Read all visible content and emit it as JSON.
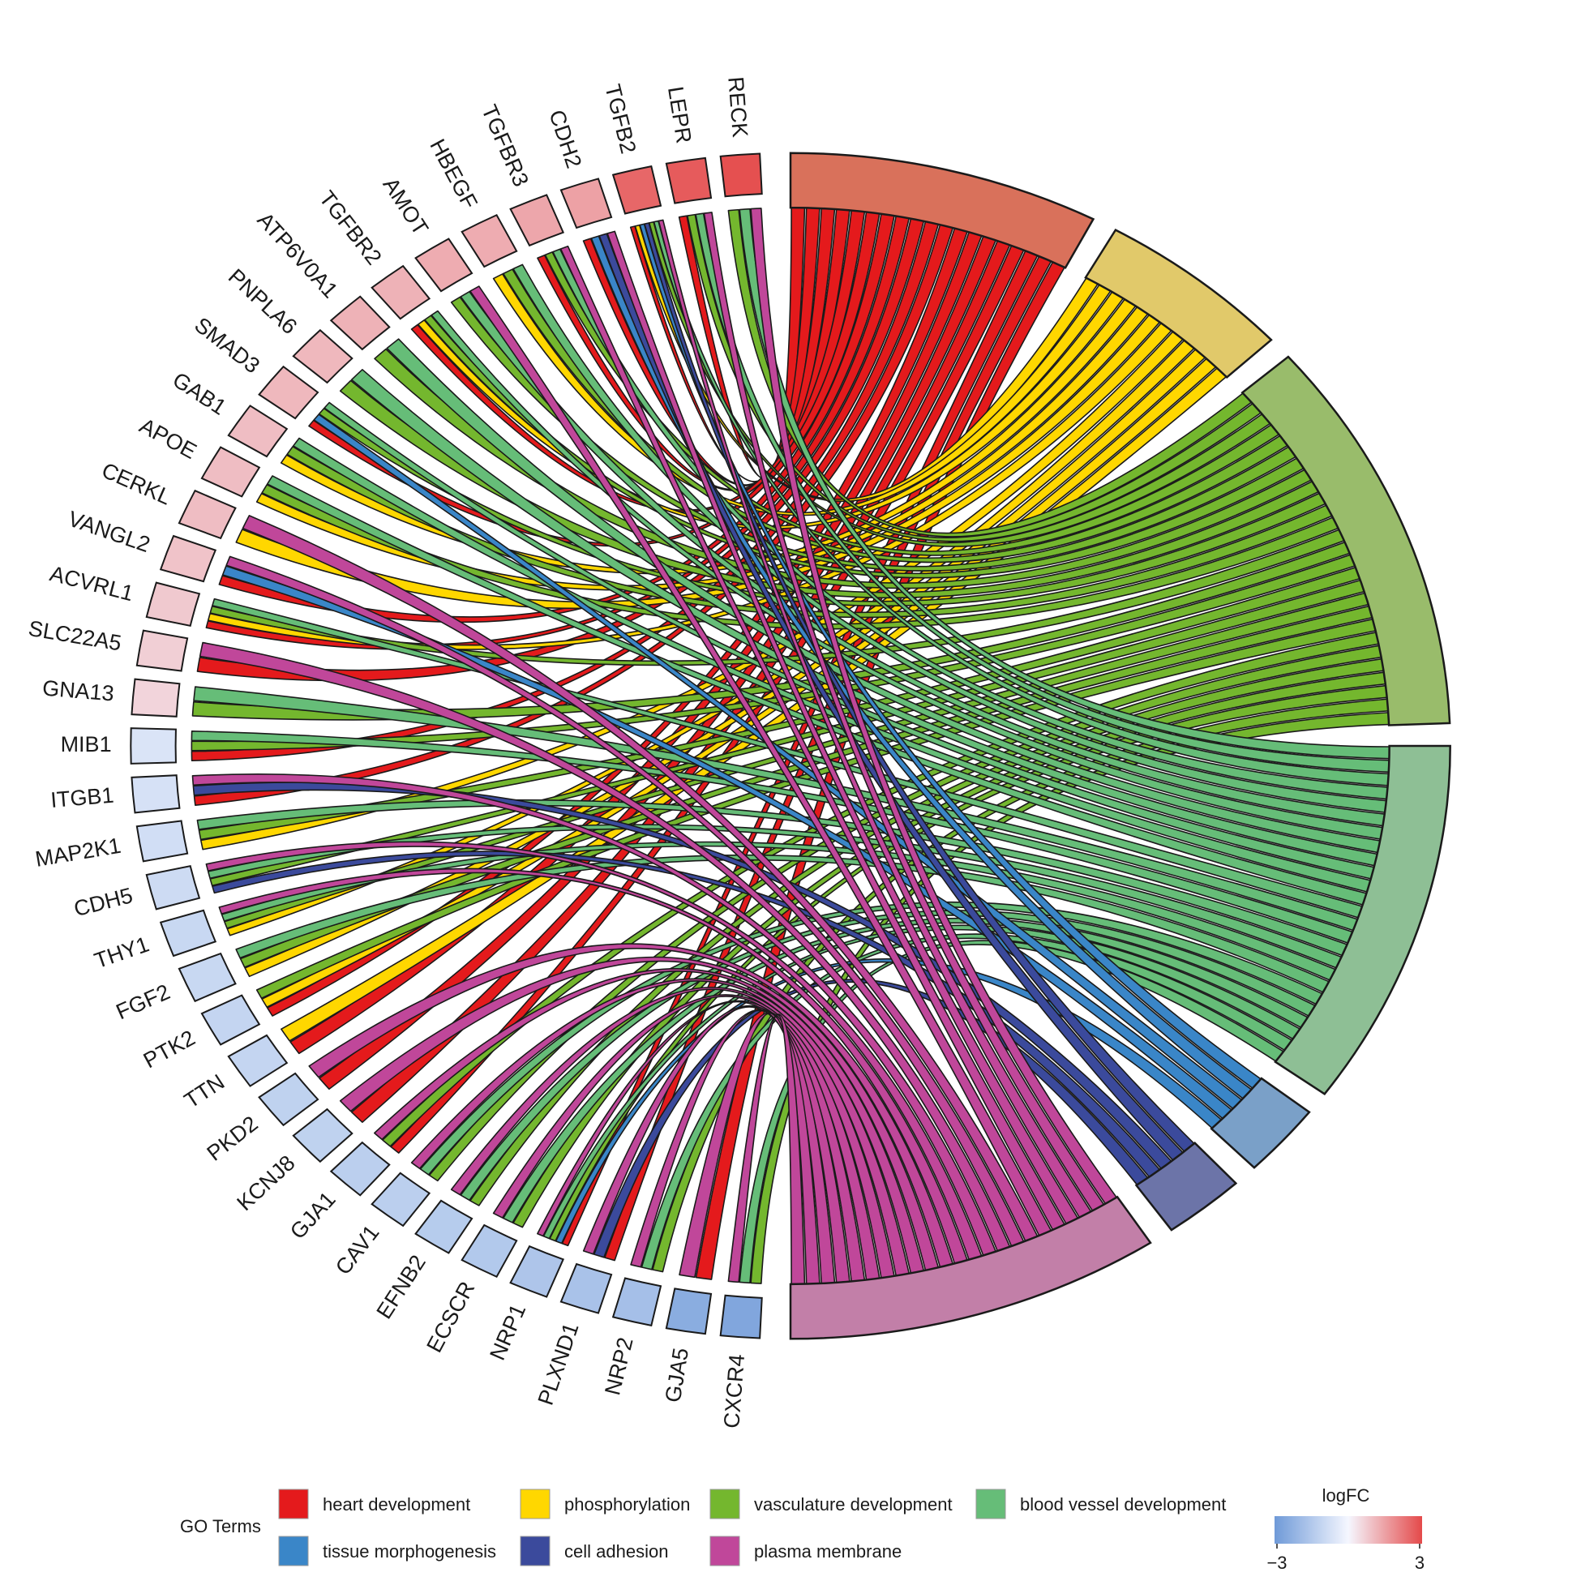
{
  "chart_data": {
    "type": "chord",
    "legend_title": "GO Terms",
    "terms": [
      {
        "name": "heart development",
        "color": "#E41A1C",
        "arc_color": "#D9715B"
      },
      {
        "name": "phosphorylation",
        "color": "#FFD700",
        "arc_color": "#E1C96A"
      },
      {
        "name": "vasculature development",
        "color": "#74B72E",
        "arc_color": "#99BC6B"
      },
      {
        "name": "blood vessel development",
        "color": "#66BD78",
        "arc_color": "#8EBF95"
      },
      {
        "name": "tissue morphogenesis",
        "color": "#3A86C8",
        "arc_color": "#7AA0C8"
      },
      {
        "name": "cell adhesion",
        "color": "#3B4A9C",
        "arc_color": "#6C74A8"
      },
      {
        "name": "plasma membrane",
        "color": "#C0479A",
        "arc_color": "#C27FA8"
      }
    ],
    "genes": [
      {
        "name": "RECK",
        "logFC": 2.9
      },
      {
        "name": "LEPR",
        "logFC": 2.7
      },
      {
        "name": "TGFB2",
        "logFC": 2.5
      },
      {
        "name": "CDH2",
        "logFC": 1.5
      },
      {
        "name": "TGFBR3",
        "logFC": 1.4
      },
      {
        "name": "HBEGF",
        "logFC": 1.3
      },
      {
        "name": "AMOT",
        "logFC": 1.3
      },
      {
        "name": "TGFBR2",
        "logFC": 1.2
      },
      {
        "name": "ATP6V0A1",
        "logFC": 1.2
      },
      {
        "name": "PNPLA6",
        "logFC": 1.1
      },
      {
        "name": "SMAD3",
        "logFC": 1.1
      },
      {
        "name": "GAB1",
        "logFC": 1.0
      },
      {
        "name": "APOE",
        "logFC": 1.0
      },
      {
        "name": "CERKL",
        "logFC": 1.0
      },
      {
        "name": "VANGL2",
        "logFC": 0.9
      },
      {
        "name": "ACVRL1",
        "logFC": 0.8
      },
      {
        "name": "SLC22A5",
        "logFC": 0.7
      },
      {
        "name": "GNA13",
        "logFC": 0.6
      },
      {
        "name": "MIB1",
        "logFC": -0.6
      },
      {
        "name": "ITGB1",
        "logFC": -0.7
      },
      {
        "name": "MAP2K1",
        "logFC": -0.8
      },
      {
        "name": "CDH5",
        "logFC": -0.9
      },
      {
        "name": "THY1",
        "logFC": -1.0
      },
      {
        "name": "FGF2",
        "logFC": -1.0
      },
      {
        "name": "PTK2",
        "logFC": -1.1
      },
      {
        "name": "TTN",
        "logFC": -1.1
      },
      {
        "name": "PKD2",
        "logFC": -1.2
      },
      {
        "name": "KCNJ8",
        "logFC": -1.2
      },
      {
        "name": "GJA1",
        "logFC": -1.3
      },
      {
        "name": "CAV1",
        "logFC": -1.3
      },
      {
        "name": "EFNB2",
        "logFC": -1.4
      },
      {
        "name": "ECSCR",
        "logFC": -1.5
      },
      {
        "name": "NRP1",
        "logFC": -1.6
      },
      {
        "name": "PLXND1",
        "logFC": -1.7
      },
      {
        "name": "NRP2",
        "logFC": -1.8
      },
      {
        "name": "GJA5",
        "logFC": -2.4
      },
      {
        "name": "CXCR4",
        "logFC": -2.6
      }
    ],
    "links": {
      "RECK": [
        "vasculature development",
        "blood vessel development",
        "plasma membrane"
      ],
      "LEPR": [
        "heart development",
        "vasculature development",
        "blood vessel development",
        "plasma membrane"
      ],
      "TGFB2": [
        "heart development",
        "phosphorylation",
        "tissue morphogenesis",
        "cell adhesion",
        "vasculature development",
        "blood vessel development",
        "plasma membrane"
      ],
      "CDH2": [
        "heart development",
        "tissue morphogenesis",
        "cell adhesion",
        "plasma membrane"
      ],
      "TGFBR3": [
        "heart development",
        "vasculature development",
        "blood vessel development",
        "plasma membrane"
      ],
      "HBEGF": [
        "phosphorylation",
        "vasculature development",
        "blood vessel development"
      ],
      "AMOT": [
        "vasculature development",
        "blood vessel development",
        "plasma membrane"
      ],
      "TGFBR2": [
        "heart development",
        "phosphorylation",
        "vasculature development",
        "blood vessel development"
      ],
      "ATP6V0A1": [
        "vasculature development",
        "blood vessel development"
      ],
      "PNPLA6": [
        "vasculature development",
        "blood vessel development"
      ],
      "SMAD3": [
        "heart development",
        "tissue morphogenesis",
        "vasculature development",
        "blood vessel development"
      ],
      "GAB1": [
        "phosphorylation",
        "vasculature development",
        "blood vessel development"
      ],
      "APOE": [
        "phosphorylation",
        "vasculature development",
        "blood vessel development"
      ],
      "CERKL": [
        "phosphorylation",
        "plasma membrane"
      ],
      "VANGL2": [
        "heart development",
        "tissue morphogenesis",
        "plasma membrane"
      ],
      "ACVRL1": [
        "heart development",
        "phosphorylation",
        "vasculature development",
        "blood vessel development"
      ],
      "SLC22A5": [
        "heart development",
        "plasma membrane"
      ],
      "GNA13": [
        "vasculature development",
        "blood vessel development"
      ],
      "MIB1": [
        "heart development",
        "vasculature development",
        "blood vessel development"
      ],
      "ITGB1": [
        "heart development",
        "cell adhesion",
        "plasma membrane"
      ],
      "MAP2K1": [
        "phosphorylation",
        "vasculature development",
        "blood vessel development"
      ],
      "CDH5": [
        "cell adhesion",
        "vasculature development",
        "blood vessel development",
        "plasma membrane"
      ],
      "THY1": [
        "phosphorylation",
        "vasculature development",
        "blood vessel development",
        "plasma membrane"
      ],
      "FGF2": [
        "phosphorylation",
        "vasculature development",
        "blood vessel development"
      ],
      "PTK2": [
        "heart development",
        "phosphorylation",
        "vasculature development"
      ],
      "TTN": [
        "heart development",
        "phosphorylation"
      ],
      "PKD2": [
        "heart development",
        "plasma membrane"
      ],
      "KCNJ8": [
        "heart development",
        "plasma membrane"
      ],
      "GJA1": [
        "heart development",
        "vasculature development",
        "plasma membrane"
      ],
      "CAV1": [
        "vasculature development",
        "blood vessel development",
        "plasma membrane"
      ],
      "EFNB2": [
        "vasculature development",
        "blood vessel development",
        "plasma membrane"
      ],
      "ECSCR": [
        "vasculature development",
        "blood vessel development",
        "plasma membrane"
      ],
      "NRP1": [
        "heart development",
        "tissue morphogenesis",
        "vasculature development",
        "blood vessel development",
        "plasma membrane"
      ],
      "PLXND1": [
        "heart development",
        "cell adhesion",
        "plasma membrane"
      ],
      "NRP2": [
        "vasculature development",
        "blood vessel development",
        "plasma membrane"
      ],
      "GJA5": [
        "heart development",
        "plasma membrane"
      ],
      "CXCR4": [
        "vasculature development",
        "blood vessel development",
        "plasma membrane"
      ]
    },
    "colorbar": {
      "title": "logFC",
      "min": -3,
      "max": 3,
      "min_label": "−3",
      "max_label": "3",
      "low_color": "#6F9AD8",
      "mid_color": "#F5F7FF",
      "high_color": "#E44A4A"
    }
  }
}
